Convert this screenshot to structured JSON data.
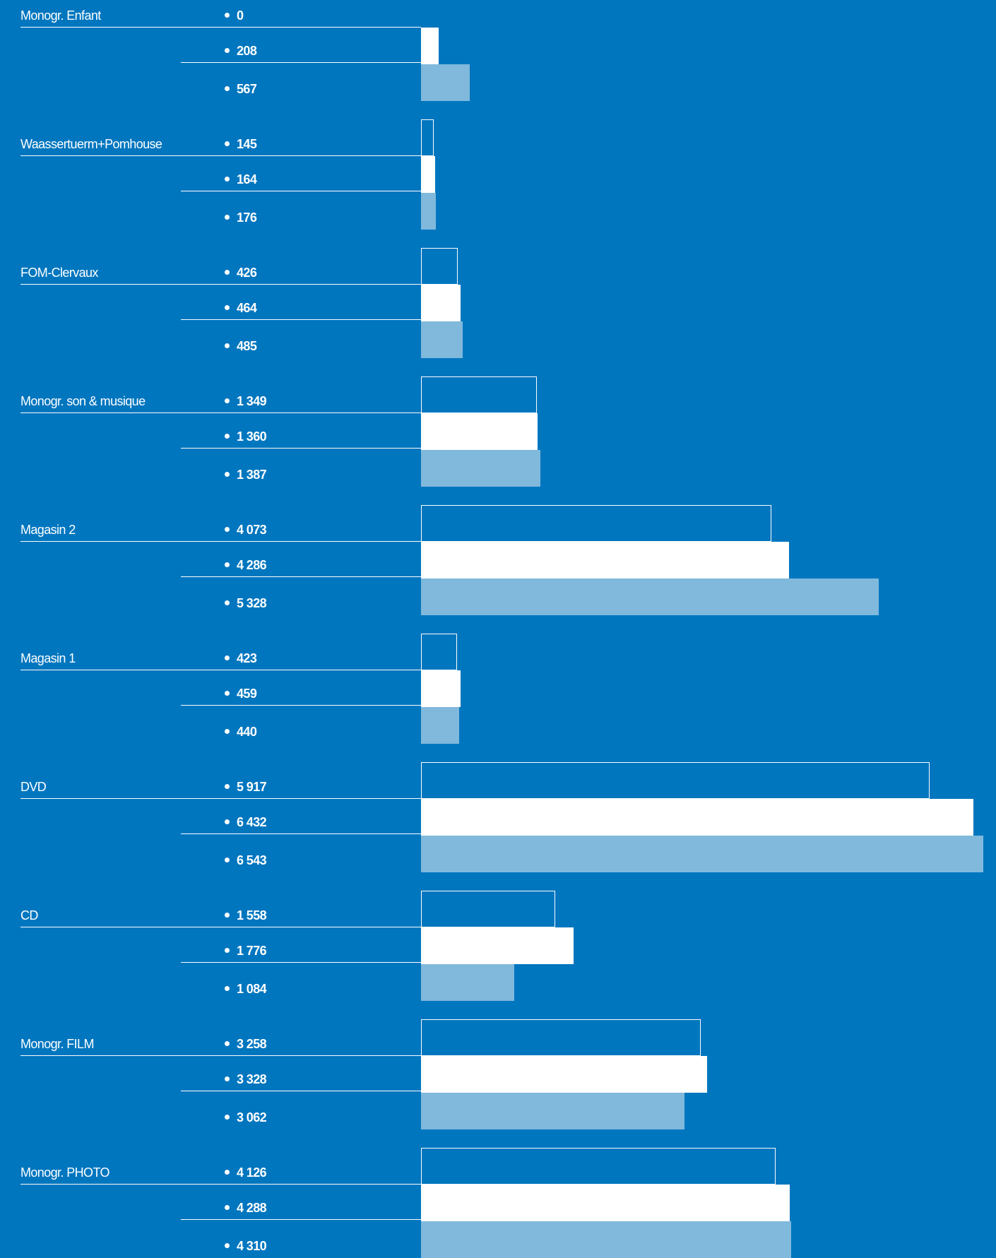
{
  "chart_data": {
    "type": "bar",
    "orientation": "horizontal",
    "categories": [
      "Monogr. Enfant",
      "Waassertuerm+Pomhouse",
      "FOM-Clervaux",
      "Monogr. son & musique",
      "Magasin 2",
      "Magasin 1",
      "DVD",
      "CD",
      "Monogr. FILM",
      "Monogr. PHOTO"
    ],
    "series": [
      {
        "style": "outline",
        "values": [
          0,
          145,
          426,
          1349,
          4073,
          423,
          5917,
          1558,
          3258,
          4126
        ],
        "labels": [
          "0",
          "145",
          "426",
          "1 349",
          "4 073",
          "423",
          "5 917",
          "1 558",
          "3 258",
          "4 126"
        ]
      },
      {
        "style": "solid",
        "values": [
          208,
          164,
          464,
          1360,
          4286,
          459,
          6432,
          1776,
          3328,
          4288
        ],
        "labels": [
          "208",
          "164",
          "464",
          "1 360",
          "4 286",
          "459",
          "6 432",
          "1 776",
          "3 328",
          "4 288"
        ]
      },
      {
        "style": "light",
        "values": [
          567,
          176,
          485,
          1387,
          5328,
          440,
          6543,
          1084,
          3062,
          4310
        ],
        "labels": [
          "567",
          "176",
          "485",
          "1 387",
          "5 328",
          "440",
          "6 543",
          "1 084",
          "3 062",
          "4 310"
        ]
      }
    ],
    "xlim": [
      0,
      6543
    ],
    "grid": false,
    "legend": "none"
  },
  "colors": {
    "background": "#0076bf",
    "outline_series": "#ffffff",
    "solid_series": "#ffffff",
    "light_series": "#80b9dc"
  }
}
